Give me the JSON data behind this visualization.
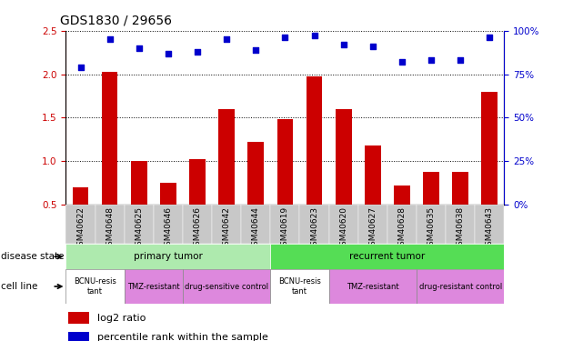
{
  "title": "GDS1830 / 29656",
  "samples": [
    "GSM40622",
    "GSM40648",
    "GSM40625",
    "GSM40646",
    "GSM40626",
    "GSM40642",
    "GSM40644",
    "GSM40619",
    "GSM40623",
    "GSM40620",
    "GSM40627",
    "GSM40628",
    "GSM40635",
    "GSM40638",
    "GSM40643"
  ],
  "log2_ratio": [
    0.7,
    2.03,
    1.0,
    0.75,
    1.02,
    1.6,
    1.22,
    1.48,
    1.97,
    1.6,
    1.18,
    0.72,
    0.88,
    0.88,
    1.8
  ],
  "percentile": [
    79,
    95,
    90,
    87,
    88,
    95,
    89,
    96,
    97,
    92,
    91,
    82,
    83,
    83,
    96
  ],
  "bar_color": "#cc0000",
  "dot_color": "#0000cc",
  "ylim_left": [
    0.5,
    2.5
  ],
  "ylim_right": [
    0,
    100
  ],
  "yticks_left": [
    0.5,
    1.0,
    1.5,
    2.0,
    2.5
  ],
  "yticks_right": [
    0,
    25,
    50,
    75,
    100
  ],
  "disease_state_groups": [
    {
      "label": "primary tumor",
      "start": 0,
      "end": 7,
      "color": "#aeeaae"
    },
    {
      "label": "recurrent tumor",
      "start": 7,
      "end": 15,
      "color": "#55dd55"
    }
  ],
  "cell_line_groups": [
    {
      "label": "BCNU-resis\ntant",
      "start": 0,
      "end": 2,
      "color": "#ffffff"
    },
    {
      "label": "TMZ-resistant",
      "start": 2,
      "end": 4,
      "color": "#dd88dd"
    },
    {
      "label": "drug-sensitive control",
      "start": 4,
      "end": 7,
      "color": "#dd88dd"
    },
    {
      "label": "BCNU-resis\ntant",
      "start": 7,
      "end": 9,
      "color": "#ffffff"
    },
    {
      "label": "TMZ-resistant",
      "start": 9,
      "end": 12,
      "color": "#dd88dd"
    },
    {
      "label": "drug-resistant control",
      "start": 12,
      "end": 15,
      "color": "#dd88dd"
    }
  ],
  "legend_items": [
    {
      "label": "log2 ratio",
      "color": "#cc0000"
    },
    {
      "label": "percentile rank within the sample",
      "color": "#0000cc"
    }
  ],
  "left_tick_color": "#cc0000",
  "right_tick_color": "#0000cc",
  "tick_fontsize": 7.5,
  "title_fontsize": 10,
  "sample_label_fontsize": 6.5,
  "annot_fontsize": 7.5
}
